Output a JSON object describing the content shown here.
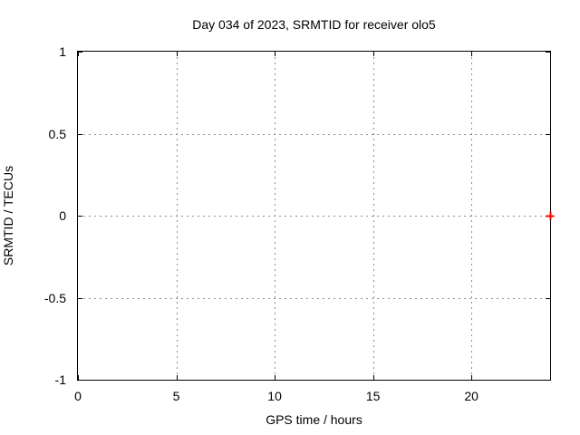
{
  "chart_data": {
    "type": "scatter",
    "title": "Day 034 of 2023, SRMTID for receiver olo5",
    "xlabel": "GPS time / hours",
    "ylabel": "SRMTID / TECUs",
    "xlim": [
      0,
      24
    ],
    "ylim": [
      -1,
      1
    ],
    "xtick_values": [
      0,
      5,
      10,
      15,
      20
    ],
    "xtick_labels": [
      "0",
      "5",
      "10",
      "15",
      "20"
    ],
    "ytick_values": [
      -1,
      -0.5,
      0,
      0.5,
      1
    ],
    "ytick_labels": [
      "-1",
      "-0.5",
      "0",
      "0.5",
      "1"
    ],
    "grid": true,
    "grid_style": "dotted",
    "legend_position": "none",
    "series": [
      {
        "name": "SRMTID",
        "marker": "plus",
        "color": "#ff0000",
        "points": [
          {
            "x": 24,
            "y": 0
          }
        ]
      }
    ],
    "colors": {
      "background": "#ffffff",
      "axis": "#000000",
      "grid": "#8c8c8c",
      "text": "#000000"
    }
  }
}
